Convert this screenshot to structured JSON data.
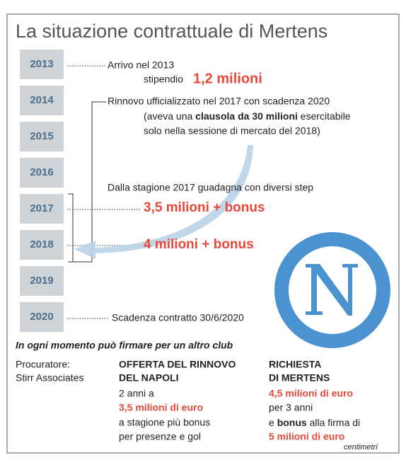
{
  "title": "La situazione contrattuale di Mertens",
  "years": [
    "2013",
    "2014",
    "2015",
    "2016",
    "2017",
    "2018",
    "2019",
    "2020"
  ],
  "notes": {
    "arrival": {
      "line1": "Arrivo nel 2013",
      "label": "stipendio",
      "amount": "1,2 milioni"
    },
    "renewal": {
      "line1": "Rinnovo ufficializzato nel 2017 con scadenza 2020",
      "line2": {
        "before": "(aveva una ",
        "bold": "clausola da 30 milioni",
        "after": " esercitabile"
      },
      "line3": "solo nella sessione di mercato del 2018)"
    },
    "steps": {
      "intro": "Dalla stagione 2017 guadagna con diversi step",
      "step1": "3,5 milioni + bonus",
      "step2": "4 milioni + bonus"
    },
    "expiry": "Scadenza contratto 30/6/2020"
  },
  "footer": {
    "headline": "In ogni momento può firmare per un altro club",
    "agent": {
      "label": "Procuratore:",
      "name": "Stirr Associates"
    },
    "offer": {
      "heading1": "OFFERTA DEL RINNOVO",
      "heading2": "DEL NAPOLI",
      "line1": "2 anni a",
      "amount": "3,5 milioni di euro",
      "line2": "a stagione più bonus",
      "line3": "per presenze e gol"
    },
    "request": {
      "heading1": "RICHIESTA",
      "heading2": "DI MERTENS",
      "amount": "4,5 milioni di euro",
      "line1": "per 3 anni",
      "line2": {
        "before": "e ",
        "bold": "bonus",
        "after": " alla firma di"
      },
      "amount2": "5 milioni di euro"
    }
  },
  "source": "centimetri"
}
